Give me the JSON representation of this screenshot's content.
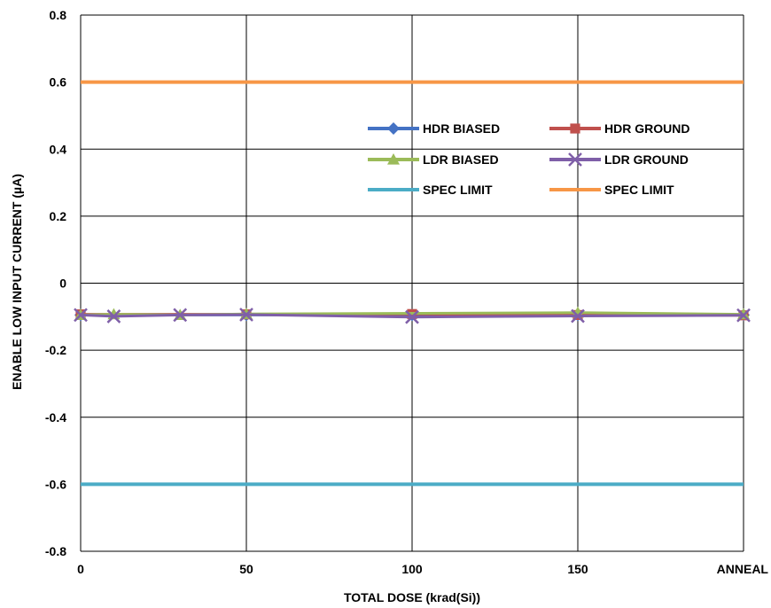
{
  "chart_data": {
    "type": "line",
    "title": "",
    "xlabel": "TOTAL DOSE (krad(Si))",
    "ylabel": "ENABLE LOW INPUT CURRENT (µA)",
    "xlim": [
      0,
      200
    ],
    "ylim": [
      -0.8,
      0.8
    ],
    "x_ticks": [
      {
        "value": 0,
        "label": "0"
      },
      {
        "value": 50,
        "label": "50"
      },
      {
        "value": 100,
        "label": "100"
      },
      {
        "value": 150,
        "label": "150"
      },
      {
        "value": 200,
        "label": "ANNEAL"
      }
    ],
    "y_ticks": [
      {
        "value": 0.8,
        "label": "0.8"
      },
      {
        "value": 0.6,
        "label": "0.6"
      },
      {
        "value": 0.4,
        "label": "0.4"
      },
      {
        "value": 0.2,
        "label": "0.2"
      },
      {
        "value": 0,
        "label": "0"
      },
      {
        "value": -0.2,
        "label": "-0.2"
      },
      {
        "value": -0.4,
        "label": "-0.4"
      },
      {
        "value": -0.6,
        "label": "-0.6"
      },
      {
        "value": -0.8,
        "label": "-0.8"
      }
    ],
    "grid": true,
    "legend_position": "upper-right",
    "series": [
      {
        "name": "HDR BIASED",
        "color": "#4472C4",
        "marker": "diamond",
        "x": [
          0,
          50,
          100,
          150,
          200
        ],
        "y": [
          -0.095,
          -0.095,
          -0.095,
          -0.095,
          -0.095
        ]
      },
      {
        "name": "HDR GROUND",
        "color": "#C0504D",
        "marker": "square",
        "x": [
          0,
          50,
          100,
          150,
          200
        ],
        "y": [
          -0.093,
          -0.093,
          -0.092,
          -0.095,
          -0.096
        ]
      },
      {
        "name": "LDR BIASED",
        "color": "#9BBB59",
        "marker": "triangle",
        "x": [
          0,
          10,
          30,
          50,
          150,
          200
        ],
        "y": [
          -0.095,
          -0.093,
          -0.095,
          -0.092,
          -0.088,
          -0.093
        ]
      },
      {
        "name": "LDR GROUND",
        "color": "#7F5FA8",
        "marker": "x",
        "x": [
          0,
          10,
          30,
          50,
          100,
          150,
          200
        ],
        "y": [
          -0.095,
          -0.099,
          -0.095,
          -0.094,
          -0.101,
          -0.098,
          -0.096
        ]
      },
      {
        "name": "SPEC LIMIT",
        "color": "#4BACC6",
        "marker": "none",
        "x": [
          0,
          200
        ],
        "y": [
          -0.6,
          -0.6
        ]
      },
      {
        "name": "SPEC LIMIT",
        "color": "#F79646",
        "marker": "none",
        "x": [
          0,
          200
        ],
        "y": [
          0.6,
          0.6
        ]
      }
    ]
  }
}
